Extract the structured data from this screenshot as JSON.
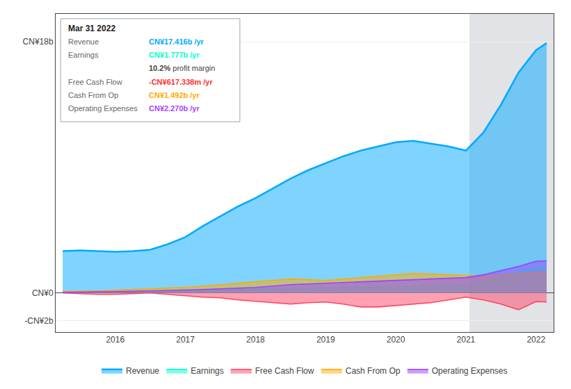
{
  "chart_data": {
    "type": "area",
    "x": [
      2015.25,
      2015.5,
      2015.75,
      2016.0,
      2016.25,
      2016.5,
      2016.75,
      2017.0,
      2017.25,
      2017.5,
      2017.75,
      2018.0,
      2018.25,
      2018.5,
      2018.75,
      2019.0,
      2019.25,
      2019.5,
      2019.75,
      2020.0,
      2020.25,
      2020.5,
      2020.75,
      2021.0,
      2021.25,
      2021.5,
      2021.75,
      2022.0,
      2022.15
    ],
    "series": [
      {
        "name": "Revenue",
        "color": "#00aaff",
        "values": [
          3.0,
          3.05,
          3.0,
          2.95,
          3.0,
          3.1,
          3.5,
          4.0,
          4.8,
          5.5,
          6.2,
          6.8,
          7.5,
          8.2,
          8.8,
          9.3,
          9.8,
          10.2,
          10.5,
          10.8,
          10.9,
          10.7,
          10.5,
          10.2,
          11.5,
          13.5,
          15.8,
          17.4,
          17.9
        ]
      },
      {
        "name": "Earnings",
        "color": "#00ffcc",
        "values": [
          0.05,
          0.06,
          0.07,
          0.08,
          0.09,
          0.1,
          0.12,
          0.15,
          0.18,
          0.2,
          0.22,
          0.25,
          0.28,
          0.3,
          0.32,
          0.35,
          0.38,
          0.4,
          0.42,
          0.45,
          0.48,
          0.5,
          0.52,
          0.55,
          0.8,
          1.2,
          1.5,
          1.777,
          1.8
        ]
      },
      {
        "name": "Free Cash Flow",
        "color": "#ff4466",
        "values": [
          0.0,
          -0.05,
          -0.1,
          -0.1,
          -0.05,
          0.0,
          -0.1,
          -0.2,
          -0.3,
          -0.35,
          -0.5,
          -0.6,
          -0.7,
          -0.8,
          -0.7,
          -0.65,
          -0.8,
          -1.0,
          -1.0,
          -0.9,
          -0.8,
          -0.7,
          -0.5,
          -0.3,
          -0.5,
          -0.8,
          -1.2,
          -0.617,
          -0.65
        ]
      },
      {
        "name": "Cash From Op",
        "color": "#ffaa00",
        "values": [
          0.1,
          0.12,
          0.15,
          0.2,
          0.25,
          0.3,
          0.35,
          0.4,
          0.5,
          0.6,
          0.7,
          0.8,
          0.9,
          1.0,
          0.95,
          0.9,
          1.0,
          1.1,
          1.2,
          1.3,
          1.4,
          1.35,
          1.3,
          1.25,
          1.2,
          1.3,
          1.4,
          1.492,
          1.5
        ]
      },
      {
        "name": "Operating Expenses",
        "color": "#9944ff",
        "values": [
          0.05,
          0.06,
          0.07,
          0.1,
          0.12,
          0.15,
          0.18,
          0.2,
          0.25,
          0.3,
          0.35,
          0.4,
          0.5,
          0.6,
          0.65,
          0.7,
          0.75,
          0.8,
          0.85,
          0.9,
          0.95,
          1.0,
          1.05,
          1.1,
          1.3,
          1.6,
          1.9,
          2.27,
          2.3
        ]
      }
    ],
    "xlim": [
      2015.15,
      2022.25
    ],
    "xticks": [
      2016,
      2017,
      2018,
      2019,
      2020,
      2021,
      2022
    ],
    "ylim": [
      -2.8,
      20.0
    ],
    "yticks": [
      {
        "value": -2,
        "label": "-CN¥2b"
      },
      {
        "value": 0,
        "label": "CN¥0"
      },
      {
        "value": 18,
        "label": "CN¥18b"
      }
    ],
    "shaded_from": 2021.05,
    "grid": "y",
    "legend": "bottom",
    "annotations": {
      "title": "Mar 31 2022",
      "rows": [
        {
          "label": "Revenue",
          "value": "CN¥17.416b /yr",
          "color": "#00aaff"
        },
        {
          "label": "Earnings",
          "value": "CN¥1.777b /yr",
          "color": "#00ffcc"
        },
        {
          "value": "10.2%",
          "text": " profit margin"
        },
        {
          "label": "Free Cash Flow",
          "value": "-CN¥617.338m /yr",
          "color": "#ff3333"
        },
        {
          "label": "Cash From Op",
          "value": "CN¥1.492b /yr",
          "color": "#ffaa00"
        },
        {
          "label": "Operating Expenses",
          "value": "CN¥2.270b /yr",
          "color": "#aa44ff"
        }
      ]
    }
  }
}
